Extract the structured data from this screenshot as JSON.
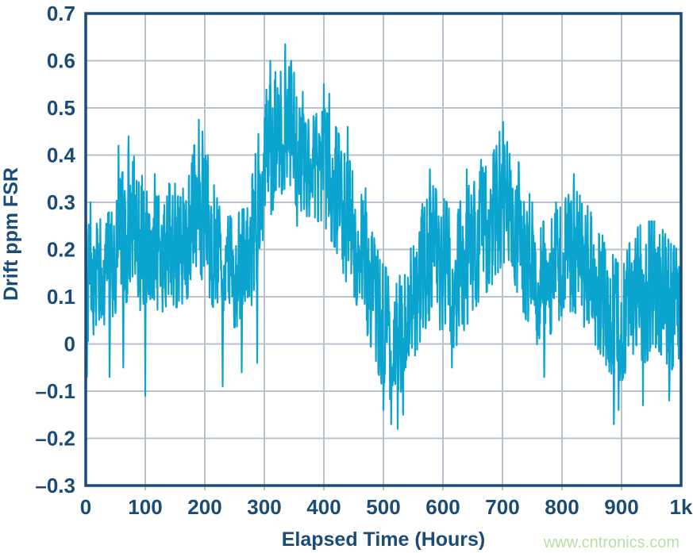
{
  "page": {
    "watermark": {
      "label": "www.cntronics.com",
      "color": "#b5e0a6"
    }
  },
  "chart_data": {
    "type": "line",
    "title": "",
    "xlabel": "Elapsed Time (Hours)",
    "ylabel": "Drift ppm FSR",
    "xlim": [
      0,
      1000
    ],
    "ylim": [
      -0.3,
      0.7
    ],
    "grid": true,
    "legend": false,
    "x_tick_labels": [
      "0",
      "100",
      "200",
      "300",
      "400",
      "500",
      "600",
      "700",
      "800",
      "900",
      "1k"
    ],
    "x_tick_values": [
      0,
      100,
      200,
      300,
      400,
      500,
      600,
      700,
      800,
      900,
      1000
    ],
    "y_tick_labels": [
      "0.7",
      "0.6",
      "0.5",
      "0.4",
      "0.3",
      "0.2",
      "0.1",
      "0",
      "–0.1",
      "–0.2",
      "–0.3"
    ],
    "y_tick_values": [
      0.7,
      0.6,
      0.5,
      0.4,
      0.3,
      0.2,
      0.1,
      0,
      -0.1,
      -0.2,
      -0.3
    ],
    "colors": {
      "series": "#0ba4ce",
      "axis": "#1b4b77",
      "grid": "#b8c2cc",
      "background": "#ffffff"
    },
    "series": [
      {
        "name": "drift",
        "description": "dense noisy drift trace; band envelope sampled every 20 hours plus narrow spikes",
        "trend_t_start": 0,
        "trend_t_step": 20,
        "band_top": [
          0.27,
          0.26,
          0.28,
          0.36,
          0.4,
          0.34,
          0.31,
          0.34,
          0.31,
          0.42,
          0.43,
          0.31,
          0.27,
          0.28,
          0.36,
          0.53,
          0.58,
          0.6,
          0.55,
          0.48,
          0.5,
          0.46,
          0.4,
          0.33,
          0.24,
          0.17,
          0.13,
          0.17,
          0.28,
          0.34,
          0.31,
          0.28,
          0.33,
          0.36,
          0.4,
          0.44,
          0.41,
          0.34,
          0.26,
          0.26,
          0.3,
          0.33,
          0.3,
          0.25,
          0.2,
          0.16,
          0.24,
          0.26,
          0.26,
          0.22,
          0.19
        ],
        "band_bottom": [
          0.0,
          0.03,
          0.05,
          0.08,
          0.1,
          0.05,
          0.05,
          0.09,
          0.07,
          0.12,
          0.12,
          0.06,
          0.03,
          0.04,
          0.08,
          0.24,
          0.3,
          0.34,
          0.27,
          0.27,
          0.25,
          0.2,
          0.12,
          0.07,
          -0.01,
          -0.1,
          -0.13,
          -0.07,
          0.0,
          0.06,
          0.02,
          -0.01,
          0.04,
          0.09,
          0.12,
          0.17,
          0.12,
          0.05,
          -0.01,
          0.02,
          0.06,
          0.07,
          0.03,
          -0.01,
          -0.06,
          -0.08,
          -0.02,
          -0.04,
          -0.01,
          -0.05,
          -0.07
        ],
        "spikes": [
          [
            2,
            -0.07
          ],
          [
            8,
            0.3
          ],
          [
            40,
            -0.07
          ],
          [
            55,
            0.42
          ],
          [
            63,
            -0.05
          ],
          [
            72,
            0.44
          ],
          [
            100,
            -0.11
          ],
          [
            116,
            0.36
          ],
          [
            150,
            0.34
          ],
          [
            190,
            0.475
          ],
          [
            196,
            0.45
          ],
          [
            230,
            -0.09
          ],
          [
            262,
            -0.06
          ],
          [
            288,
            -0.04
          ],
          [
            310,
            0.6
          ],
          [
            335,
            0.635
          ],
          [
            345,
            0.6
          ],
          [
            355,
            0.25
          ],
          [
            400,
            0.55
          ],
          [
            409,
            0.53
          ],
          [
            440,
            0.46
          ],
          [
            470,
            0.33
          ],
          [
            500,
            -0.14
          ],
          [
            513,
            -0.17
          ],
          [
            524,
            -0.18
          ],
          [
            533,
            -0.15
          ],
          [
            578,
            0.37
          ],
          [
            615,
            -0.05
          ],
          [
            640,
            0.37
          ],
          [
            664,
            0.39
          ],
          [
            695,
            0.45
          ],
          [
            701,
            0.47
          ],
          [
            770,
            -0.07
          ],
          [
            790,
            0.3
          ],
          [
            820,
            0.36
          ],
          [
            887,
            -0.17
          ],
          [
            895,
            -0.14
          ],
          [
            936,
            -0.13
          ],
          [
            980,
            -0.12
          ]
        ],
        "sample_step_hours": 0.5,
        "noise_seed": 7
      }
    ]
  }
}
